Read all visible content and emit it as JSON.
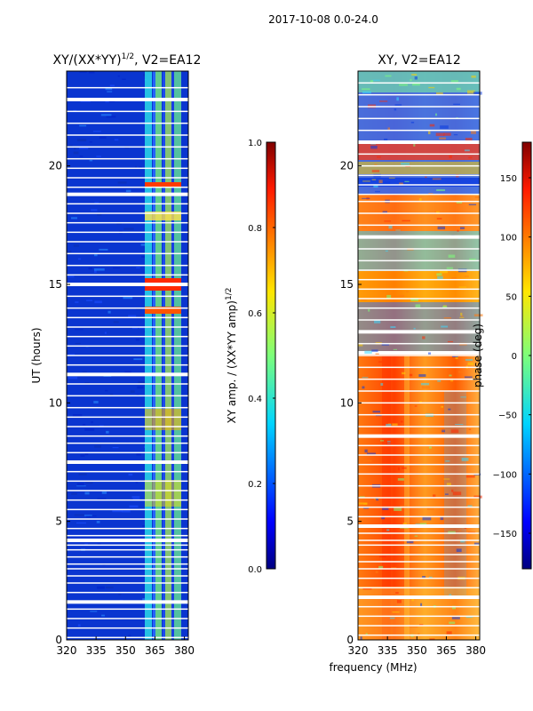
{
  "suptitle": "2017-10-08 0.0-24.0",
  "chart_data": [
    {
      "type": "heatmap",
      "title_main": "XY/(XX*YY)",
      "title_exponent": "1/2",
      "title_tail": ", V2=EA12",
      "xlabel": "",
      "ylabel": "UT (hours)",
      "xlim": [
        320,
        382
      ],
      "ylim": [
        0,
        24
      ],
      "x_ticks": [
        320,
        335,
        350,
        365,
        380
      ],
      "y_ticks": [
        0,
        5,
        10,
        15,
        20
      ],
      "colorbar": {
        "label_main": "XY amp. / (XX*YY amp)",
        "label_exponent": "1/2",
        "range": [
          0.0,
          1.0
        ],
        "ticks": [
          "0.0",
          "0.2",
          "0.4",
          "0.6",
          "0.8",
          "1.0"
        ],
        "tick_values": [
          0.0,
          0.2,
          0.4,
          0.6,
          0.8,
          1.0
        ]
      },
      "flagged_hours": [
        0.1,
        0.5,
        0.9,
        1.3,
        1.6,
        2.0,
        2.4,
        2.7,
        3.0,
        3.2,
        3.5,
        3.8,
        4.0,
        4.2,
        4.4,
        4.7,
        5.1,
        5.5,
        5.9,
        6.3,
        6.7,
        7.1,
        7.5,
        7.9,
        8.3,
        8.6,
        9.0,
        9.4,
        9.8,
        10.3,
        10.8,
        11.2,
        11.6,
        12.0,
        12.4,
        12.8,
        13.2,
        13.6,
        14.0,
        14.5,
        15.0,
        15.4,
        15.8,
        16.3,
        16.8,
        17.2,
        17.6,
        18.0,
        18.4,
        18.8,
        19.1,
        19.5,
        19.9,
        20.3,
        20.8,
        21.3,
        21.8,
        22.3,
        22.8,
        23.3
      ]
    },
    {
      "type": "heatmap",
      "title_main": "XY, V2=EA12",
      "xlabel": "frequency (MHz)",
      "ylabel": "",
      "xlim": [
        320,
        382
      ],
      "ylim": [
        0,
        24
      ],
      "x_ticks": [
        320,
        335,
        350,
        365,
        380
      ],
      "y_ticks": [
        0,
        5,
        10,
        15,
        20
      ],
      "colorbar": {
        "label_main": "phase (deg)",
        "range": [
          -180,
          180
        ],
        "ticks": [
          "−150",
          "−100",
          "−50",
          "0",
          "50",
          "100",
          "150"
        ],
        "tick_values": [
          -150,
          -100,
          -50,
          0,
          50,
          100,
          150
        ]
      },
      "flagged_hours": [
        0.2,
        0.6,
        1.0,
        1.4,
        1.8,
        2.2,
        2.6,
        3.0,
        3.3,
        3.6,
        4.0,
        4.2,
        4.5,
        4.8,
        5.2,
        5.6,
        6.0,
        6.5,
        7.0,
        7.4,
        7.8,
        8.2,
        8.6,
        9.0,
        9.5,
        10.0,
        10.5,
        11.0,
        11.5,
        12.0,
        12.5,
        13.0,
        13.5,
        14.0,
        14.4,
        14.8,
        15.2,
        15.6,
        16.0,
        16.5,
        17.0,
        17.5,
        18.0,
        18.5,
        18.8,
        19.2,
        19.6,
        20.0,
        20.5,
        21.0,
        21.5,
        22.0,
        22.5,
        23.0,
        23.5
      ]
    }
  ]
}
